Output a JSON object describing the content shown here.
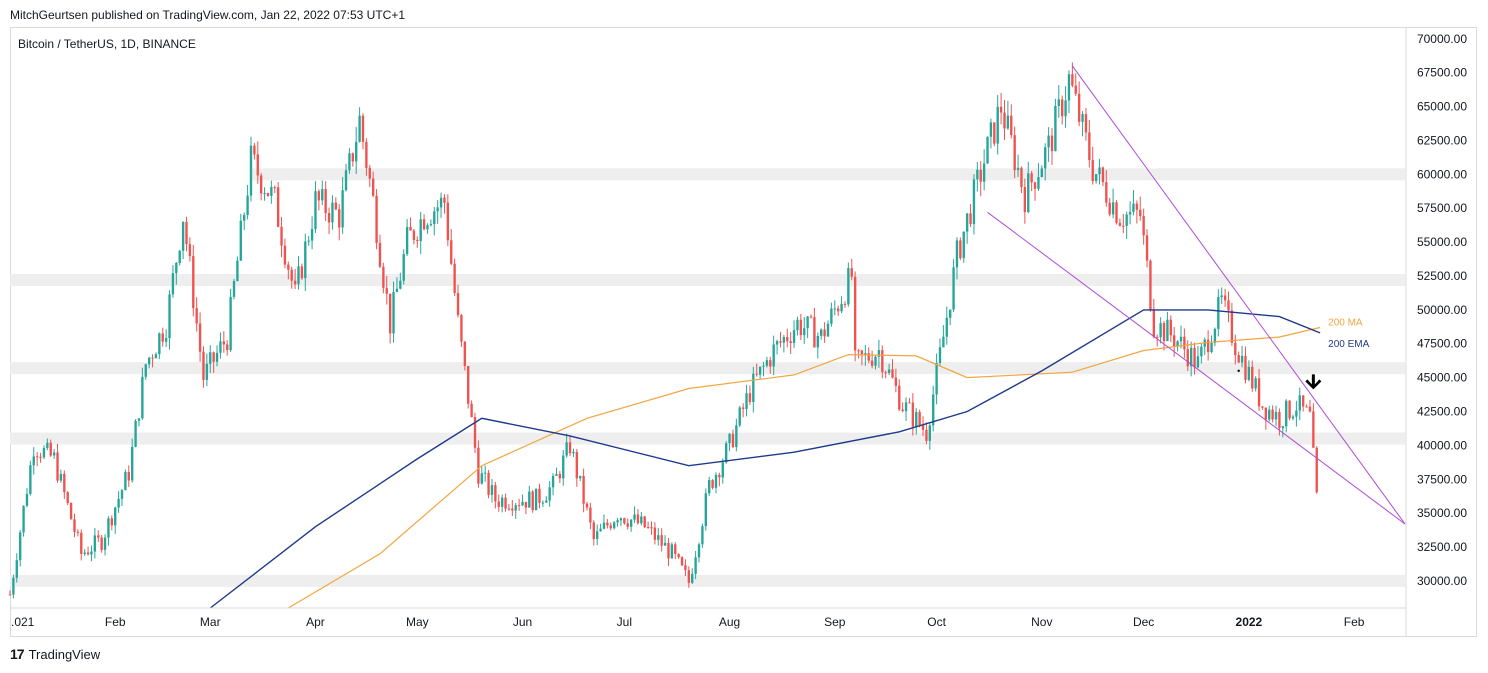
{
  "header": {
    "published_by": "MitchGeurtsen published on TradingView.com, Jan 22, 2022 07:53 UTC+1",
    "symbol": "Bitcoin / TetherUS, 1D, BINANCE"
  },
  "footer": {
    "brand": "TradingView",
    "logo_icon": "tradingview-logo-icon"
  },
  "colors": {
    "up": "#26a69a",
    "down": "#ef5350",
    "ma": "#f2a541",
    "ema": "#1e3a8a",
    "trendline": "#b04ad8",
    "zone": "#eeeeee",
    "arrow": "#000000"
  },
  "chart_data": {
    "type": "candlestick",
    "title": "Bitcoin / TetherUS, 1D, BINANCE",
    "ylim": [
      28000,
      70800
    ],
    "y_ticks": [
      "70000.00",
      "67500.00",
      "65000.00",
      "62500.00",
      "60000.00",
      "57500.00",
      "55000.00",
      "52500.00",
      "50000.00",
      "47500.00",
      "45000.00",
      "42500.00",
      "40000.00",
      "37500.00",
      "35000.00",
      "32500.00",
      "30000.00"
    ],
    "x_ticks": [
      ".021",
      "Feb",
      "Mar",
      "Apr",
      "May",
      "Jun",
      "Jul",
      "Aug",
      "Sep",
      "Oct",
      "Nov",
      "Dec",
      "2022",
      "Feb"
    ],
    "x_tick_dates": [
      "2021-01-01",
      "2021-02-01",
      "2021-03-01",
      "2021-04-01",
      "2021-05-01",
      "2021-06-01",
      "2021-07-01",
      "2021-08-01",
      "2021-09-01",
      "2021-10-01",
      "2021-11-01",
      "2021-12-01",
      "2022-01-01",
      "2022-02-01"
    ],
    "x_range": [
      "2021-01-01",
      "2022-02-16"
    ],
    "close_points": [
      [
        "2021-01-01",
        29000
      ],
      [
        "2021-01-08",
        40000
      ],
      [
        "2021-01-14",
        39000
      ],
      [
        "2021-01-22",
        32000
      ],
      [
        "2021-01-28",
        33000
      ],
      [
        "2021-02-05",
        38000
      ],
      [
        "2021-02-10",
        46000
      ],
      [
        "2021-02-16",
        49000
      ],
      [
        "2021-02-21",
        57000
      ],
      [
        "2021-02-27",
        45000
      ],
      [
        "2021-03-06",
        48000
      ],
      [
        "2021-03-13",
        61000
      ],
      [
        "2021-03-20",
        58000
      ],
      [
        "2021-03-26",
        51000
      ],
      [
        "2021-04-01",
        58000
      ],
      [
        "2021-04-08",
        57000
      ],
      [
        "2021-04-14",
        64000
      ],
      [
        "2021-04-18",
        58000
      ],
      [
        "2021-04-23",
        49000
      ],
      [
        "2021-04-28",
        55000
      ],
      [
        "2021-05-03",
        57000
      ],
      [
        "2021-05-09",
        58000
      ],
      [
        "2021-05-13",
        49000
      ],
      [
        "2021-05-19",
        38000
      ],
      [
        "2021-05-24",
        36000
      ],
      [
        "2021-05-29",
        36000
      ],
      [
        "2021-06-05",
        36000
      ],
      [
        "2021-06-10",
        37000
      ],
      [
        "2021-06-15",
        40000
      ],
      [
        "2021-06-22",
        33000
      ],
      [
        "2021-06-29",
        35000
      ],
      [
        "2021-07-07",
        34000
      ],
      [
        "2021-07-15",
        32000
      ],
      [
        "2021-07-20",
        29900
      ],
      [
        "2021-07-26",
        37000
      ],
      [
        "2021-08-01",
        40000
      ],
      [
        "2021-08-07",
        44000
      ],
      [
        "2021-08-14",
        47000
      ],
      [
        "2021-08-21",
        49000
      ],
      [
        "2021-08-28",
        48000
      ],
      [
        "2021-09-06",
        52500
      ],
      [
        "2021-09-07",
        46000
      ],
      [
        "2021-09-14",
        47000
      ],
      [
        "2021-09-21",
        43000
      ],
      [
        "2021-09-28",
        41000
      ],
      [
        "2021-10-03",
        48000
      ],
      [
        "2021-10-07",
        54000
      ],
      [
        "2021-10-15",
        61000
      ],
      [
        "2021-10-20",
        65000
      ],
      [
        "2021-10-27",
        58500
      ],
      [
        "2021-11-03",
        62000
      ],
      [
        "2021-11-09",
        67000
      ],
      [
        "2021-11-16",
        60500
      ],
      [
        "2021-11-24",
        57000
      ],
      [
        "2021-11-30",
        57000
      ],
      [
        "2021-12-04",
        49000
      ],
      [
        "2021-12-10",
        48000
      ],
      [
        "2021-12-17",
        46000
      ],
      [
        "2021-12-24",
        50500
      ],
      [
        "2021-12-28",
        47500
      ],
      [
        "2022-01-05",
        43000
      ],
      [
        "2022-01-10",
        42000
      ],
      [
        "2022-01-15",
        43000
      ],
      [
        "2022-01-19",
        42000
      ],
      [
        "2022-01-21",
        36000
      ]
    ],
    "series": [
      {
        "name": "200 MA",
        "points": [
          [
            "2021-03-24",
            28000
          ],
          [
            "2021-04-20",
            32000
          ],
          [
            "2021-05-20",
            38500
          ],
          [
            "2021-06-20",
            42000
          ],
          [
            "2021-07-20",
            44200
          ],
          [
            "2021-08-20",
            45200
          ],
          [
            "2021-09-05",
            46700
          ],
          [
            "2021-09-25",
            46600
          ],
          [
            "2021-10-10",
            45000
          ],
          [
            "2021-11-10",
            45400
          ],
          [
            "2021-12-01",
            47000
          ],
          [
            "2021-12-20",
            47600
          ],
          [
            "2022-01-10",
            48000
          ],
          [
            "2022-01-22",
            48700
          ]
        ]
      },
      {
        "name": "200 EMA",
        "points": [
          [
            "2021-03-01",
            28000
          ],
          [
            "2021-04-01",
            34000
          ],
          [
            "2021-05-01",
            39000
          ],
          [
            "2021-05-20",
            42000
          ],
          [
            "2021-06-15",
            40700
          ],
          [
            "2021-07-20",
            38500
          ],
          [
            "2021-08-20",
            39500
          ],
          [
            "2021-09-20",
            41000
          ],
          [
            "2021-10-10",
            42500
          ],
          [
            "2021-11-01",
            45500
          ],
          [
            "2021-12-01",
            50000
          ],
          [
            "2021-12-20",
            50000
          ],
          [
            "2022-01-10",
            49500
          ],
          [
            "2022-01-22",
            48300
          ]
        ]
      }
    ],
    "horizontal_zones": [
      {
        "from": "2021-03-13",
        "y": 60000
      },
      {
        "from": "2021-01-01",
        "y": 52200
      },
      {
        "from": "2021-01-01",
        "y": 45700
      },
      {
        "from": "2021-01-01",
        "y": 40500
      },
      {
        "from": "2021-01-01",
        "y": 30000
      }
    ],
    "trendlines": [
      {
        "from": [
          "2021-11-10",
          68000
        ],
        "to": [
          "2022-02-16",
          34200
        ]
      },
      {
        "from": [
          "2021-10-16",
          57200
        ],
        "to": [
          "2022-02-16",
          34200
        ]
      }
    ],
    "annotations": [
      {
        "type": "arrow-down",
        "at": [
          "2022-01-20",
          44500
        ]
      },
      {
        "type": "dot",
        "at": [
          "2021-12-29",
          45500
        ]
      }
    ],
    "grid": false,
    "legend": "right"
  }
}
